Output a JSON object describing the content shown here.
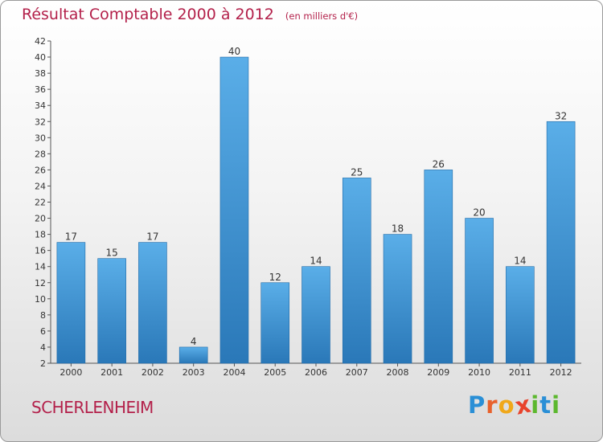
{
  "chart_data": {
    "type": "bar",
    "title": "Résultat Comptable 2000 à 2012",
    "subtitle": "(en milliers d'€)",
    "categories": [
      "2000",
      "2001",
      "2002",
      "2003",
      "2004",
      "2005",
      "2006",
      "2007",
      "2008",
      "2009",
      "2010",
      "2011",
      "2012"
    ],
    "values": [
      17,
      15,
      17,
      4,
      40,
      12,
      14,
      25,
      18,
      26,
      20,
      14,
      32
    ],
    "ylim": [
      2,
      42
    ],
    "yticks": [
      2,
      4,
      6,
      8,
      10,
      12,
      14,
      16,
      18,
      20,
      22,
      24,
      26,
      28,
      30,
      32,
      34,
      36,
      38,
      40,
      42
    ],
    "xlabel": "",
    "ylabel": "",
    "grid": false,
    "colors": {
      "bar_top": "#5aaee8",
      "bar_bottom": "#2a78b8",
      "bar_edge": "#1f6aa8",
      "axis": "#555555",
      "text": "#333333"
    }
  },
  "footer": {
    "commune": "SCHERLENHEIM",
    "logo_letters": [
      "P",
      "r",
      "o",
      "x",
      "i",
      "t",
      "i"
    ],
    "logo_colors": [
      "#2a8fd6",
      "#e8612c",
      "#f0a81a",
      "#e8432c",
      "#5cb82e",
      "#2a8fd6",
      "#5cb82e"
    ]
  }
}
